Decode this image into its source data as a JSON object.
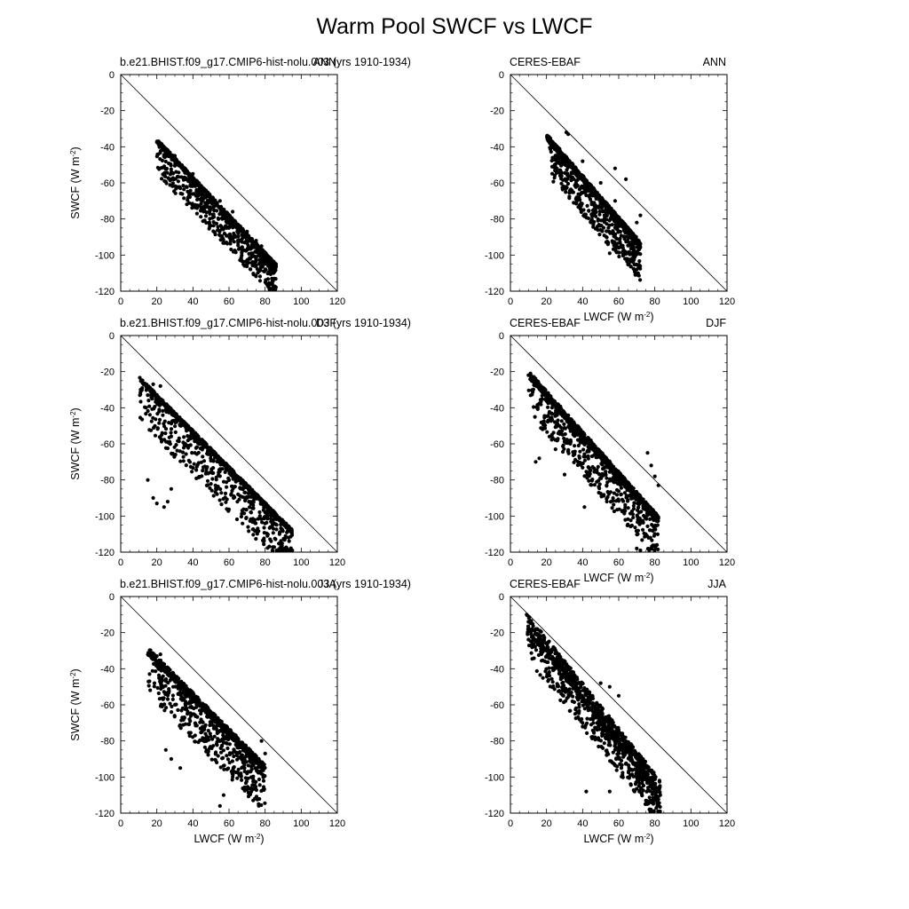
{
  "page_title": "Warm Pool SWCF vs LWCF",
  "chart_data": [
    {
      "type": "scatter",
      "row": 0,
      "col": 0,
      "left_label": "b.e21.BHIST.f09_g17.CMIP6-hist-nolu.003 (yrs 1910-1934)",
      "right_label": "ANN",
      "xlabel": "",
      "ylabel": "SWCF (W m^-2)",
      "xlim": [
        0,
        120
      ],
      "ylim": [
        -120,
        0
      ],
      "xticks": [
        0,
        20,
        40,
        60,
        80,
        100,
        120
      ],
      "yticks": [
        0,
        -20,
        -40,
        -60,
        -80,
        -100,
        -120
      ],
      "reference_line": [
        [
          0,
          0
        ],
        [
          120,
          -120
        ]
      ],
      "cloud": {
        "count": 1100,
        "x_range": [
          20,
          86
        ],
        "trend_slope": -1.05,
        "trend_intercept": -16,
        "spread_above": 2,
        "spread_below": 18,
        "seed": 11
      },
      "points": [
        [
          21,
          -37
        ],
        [
          30,
          -45
        ],
        [
          40,
          -55
        ],
        [
          55,
          -70
        ],
        [
          62,
          -76
        ],
        [
          70,
          -87
        ],
        [
          75,
          -92
        ],
        [
          80,
          -102
        ],
        [
          82,
          -110
        ],
        [
          84,
          -116
        ],
        [
          85,
          -113
        ],
        [
          78,
          -95
        ],
        [
          72,
          -96
        ],
        [
          66,
          -92
        ],
        [
          60,
          -85
        ],
        [
          52,
          -73
        ],
        [
          45,
          -68
        ],
        [
          38,
          -66
        ],
        [
          33,
          -63
        ],
        [
          28,
          -58
        ]
      ]
    },
    {
      "type": "scatter",
      "row": 0,
      "col": 1,
      "left_label": "CERES-EBAF",
      "right_label": "ANN",
      "xlabel": "LWCF (W m^-2)",
      "ylabel": "",
      "xlim": [
        0,
        120
      ],
      "ylim": [
        -120,
        0
      ],
      "xticks": [
        0,
        20,
        40,
        60,
        80,
        100,
        120
      ],
      "yticks": [
        0,
        -20,
        -40,
        -60,
        -80,
        -100,
        -120
      ],
      "reference_line": [
        [
          0,
          0
        ],
        [
          120,
          -120
        ]
      ],
      "cloud": {
        "count": 1100,
        "x_range": [
          20,
          72
        ],
        "trend_slope": -1.15,
        "trend_intercept": -12,
        "spread_above": 3,
        "spread_below": 20,
        "seed": 23
      },
      "points": [
        [
          21,
          -35
        ],
        [
          31,
          -32
        ],
        [
          32,
          -33
        ],
        [
          40,
          -48
        ],
        [
          50,
          -60
        ],
        [
          58,
          -70
        ],
        [
          63,
          -85
        ],
        [
          66,
          -103
        ],
        [
          68,
          -104
        ],
        [
          55,
          -99
        ],
        [
          60,
          -96
        ],
        [
          70,
          -82
        ],
        [
          72,
          -78
        ],
        [
          64,
          -58
        ],
        [
          58,
          -52
        ]
      ]
    },
    {
      "type": "scatter",
      "row": 1,
      "col": 0,
      "left_label": "b.e21.BHIST.f09_g17.CMIP6-hist-nolu.003 (yrs 1910-1934)",
      "right_label": "DJF",
      "xlabel": "",
      "ylabel": "SWCF (W m^-2)",
      "xlim": [
        0,
        120
      ],
      "ylim": [
        -120,
        0
      ],
      "xticks": [
        0,
        20,
        40,
        60,
        80,
        100,
        120
      ],
      "yticks": [
        0,
        -20,
        -40,
        -60,
        -80,
        -100,
        -120
      ],
      "reference_line": [
        [
          0,
          0
        ],
        [
          120,
          -120
        ]
      ],
      "cloud": {
        "count": 1200,
        "x_range": [
          10,
          95
        ],
        "trend_slope": -1.0,
        "trend_intercept": -14,
        "spread_above": 2,
        "spread_below": 24,
        "seed": 37
      },
      "points": [
        [
          11,
          -30
        ],
        [
          14,
          -28
        ],
        [
          18,
          -27
        ],
        [
          22,
          -28
        ],
        [
          15,
          -80
        ],
        [
          18,
          -90
        ],
        [
          20,
          -93
        ],
        [
          24,
          -95
        ],
        [
          26,
          -92
        ],
        [
          28,
          -85
        ],
        [
          88,
          -110
        ],
        [
          92,
          -118
        ],
        [
          95,
          -119
        ],
        [
          85,
          -104
        ],
        [
          80,
          -98
        ],
        [
          70,
          -90
        ],
        [
          65,
          -88
        ]
      ]
    },
    {
      "type": "scatter",
      "row": 1,
      "col": 1,
      "left_label": "CERES-EBAF",
      "right_label": "DJF",
      "xlabel": "LWCF (W m^-2)",
      "ylabel": "",
      "xlim": [
        0,
        120
      ],
      "ylim": [
        -120,
        0
      ],
      "xticks": [
        0,
        20,
        40,
        60,
        80,
        100,
        120
      ],
      "yticks": [
        0,
        -20,
        -40,
        -60,
        -80,
        -100,
        -120
      ],
      "reference_line": [
        [
          0,
          0
        ],
        [
          120,
          -120
        ]
      ],
      "cloud": {
        "count": 1100,
        "x_range": [
          10,
          82
        ],
        "trend_slope": -1.12,
        "trend_intercept": -11,
        "spread_above": 4,
        "spread_below": 22,
        "seed": 53
      },
      "points": [
        [
          10,
          -22
        ],
        [
          12,
          -23
        ],
        [
          14,
          -70
        ],
        [
          16,
          -68
        ],
        [
          25,
          -63
        ],
        [
          30,
          -77
        ],
        [
          41,
          -95
        ],
        [
          70,
          -118
        ],
        [
          72,
          -119
        ],
        [
          75,
          -110
        ],
        [
          82,
          -83
        ],
        [
          80,
          -78
        ],
        [
          78,
          -72
        ],
        [
          76,
          -65
        ]
      ]
    },
    {
      "type": "scatter",
      "row": 2,
      "col": 0,
      "left_label": "b.e21.BHIST.f09_g17.CMIP6-hist-nolu.003 (yrs 1910-1934)",
      "right_label": "JJA",
      "xlabel": "LWCF (W m^-2)",
      "ylabel": "SWCF (W m^-2)",
      "xlim": [
        0,
        120
      ],
      "ylim": [
        -120,
        0
      ],
      "xticks": [
        0,
        20,
        40,
        60,
        80,
        100,
        120
      ],
      "yticks": [
        0,
        -20,
        -40,
        -60,
        -80,
        -100,
        -120
      ],
      "reference_line": [
        [
          0,
          0
        ],
        [
          120,
          -120
        ]
      ],
      "cloud": {
        "count": 1000,
        "x_range": [
          15,
          80
        ],
        "trend_slope": -1.0,
        "trend_intercept": -16,
        "spread_above": 4,
        "spread_below": 24,
        "seed": 71
      },
      "points": [
        [
          16,
          -43
        ],
        [
          17,
          -34
        ],
        [
          20,
          -33
        ],
        [
          22,
          -32
        ],
        [
          25,
          -85
        ],
        [
          28,
          -90
        ],
        [
          33,
          -95
        ],
        [
          55,
          -116
        ],
        [
          57,
          -110
        ],
        [
          62,
          -100
        ],
        [
          70,
          -98
        ],
        [
          72,
          -97
        ],
        [
          78,
          -80
        ],
        [
          80,
          -87
        ]
      ]
    },
    {
      "type": "scatter",
      "row": 2,
      "col": 1,
      "left_label": "CERES-EBAF",
      "right_label": "JJA",
      "xlabel": "LWCF (W m^-2)",
      "ylabel": "",
      "xlim": [
        0,
        120
      ],
      "ylim": [
        -120,
        0
      ],
      "xticks": [
        0,
        20,
        40,
        60,
        80,
        100,
        120
      ],
      "yticks": [
        0,
        -20,
        -40,
        -60,
        -80,
        -100,
        -120
      ],
      "reference_line": [
        [
          0,
          0
        ],
        [
          120,
          -120
        ]
      ],
      "cloud": {
        "count": 1100,
        "x_range": [
          9,
          83
        ],
        "trend_slope": -1.25,
        "trend_intercept": -5,
        "spread_above": 10,
        "spread_below": 18,
        "seed": 89
      },
      "points": [
        [
          9,
          -10
        ],
        [
          10,
          -14
        ],
        [
          12,
          -18
        ],
        [
          30,
          -40
        ],
        [
          42,
          -108
        ],
        [
          55,
          -108
        ],
        [
          75,
          -100
        ],
        [
          78,
          -103
        ],
        [
          80,
          -105
        ],
        [
          82,
          -108
        ],
        [
          83,
          -110
        ],
        [
          60,
          -55
        ],
        [
          55,
          -50
        ],
        [
          50,
          -48
        ]
      ]
    }
  ]
}
